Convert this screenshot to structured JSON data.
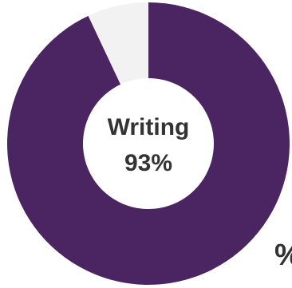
{
  "chart_data": {
    "type": "donut",
    "categories": [
      "Writing",
      null
    ],
    "values": [
      93,
      7
    ],
    "value_labels": [
      "93%",
      null
    ],
    "colors": [
      "#4b2562",
      "#f2f2f2"
    ],
    "annotation": "%"
  }
}
